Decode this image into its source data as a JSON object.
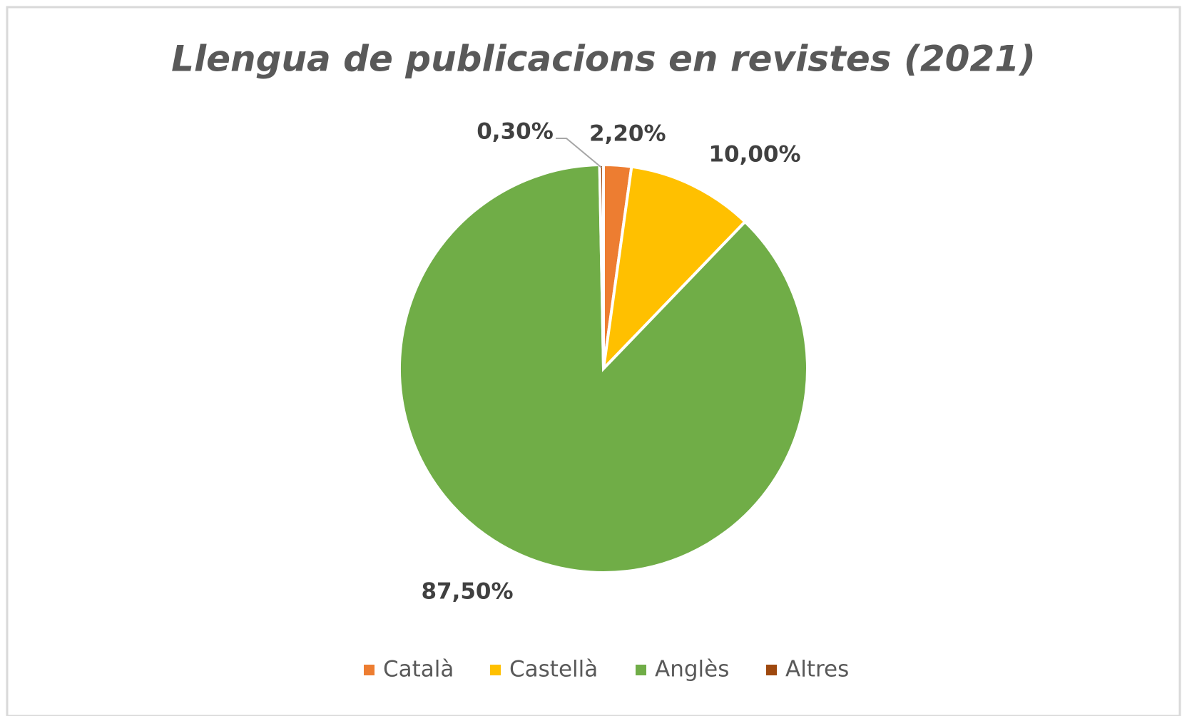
{
  "chart_data": {
    "type": "pie",
    "title": "Llengua de publicacions en revistes (2021)",
    "categories": [
      "Català",
      "Castellà",
      "Anglès",
      "Altres"
    ],
    "values": [
      2.2,
      10,
      87.5,
      0.3
    ],
    "value_labels": [
      "2,20%",
      "10,00%",
      "87,50%",
      "0,30%"
    ],
    "colors": [
      "#ed7d31",
      "#ffc000",
      "#70ad47",
      "#9e480e"
    ],
    "legend": "bottom"
  }
}
